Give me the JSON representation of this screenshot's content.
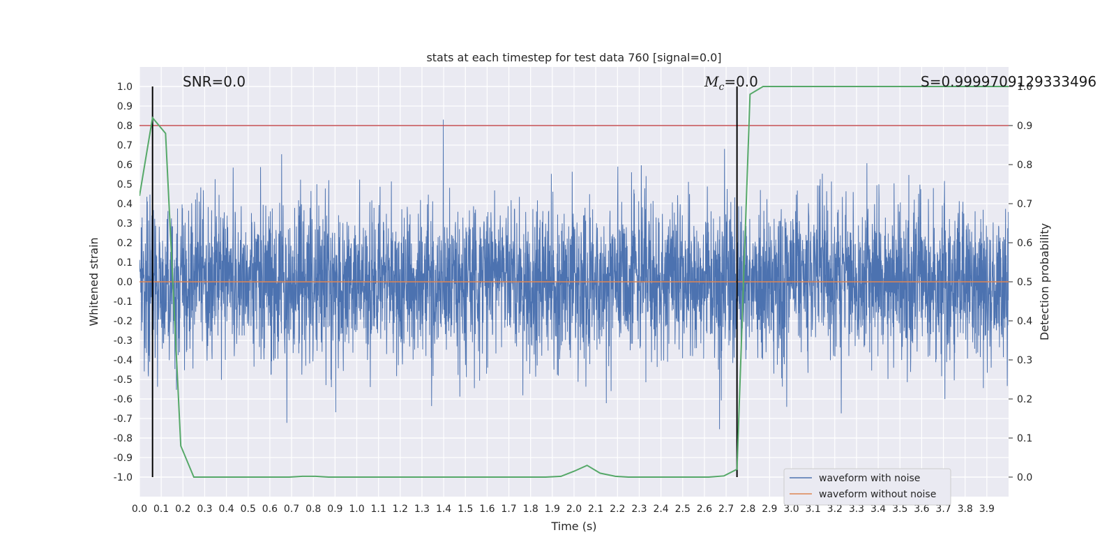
{
  "chart_data": {
    "type": "line",
    "title": "stats at each timestep for test data 760 [signal=0.0]",
    "xlabel": "Time (s)",
    "ylabel": "Whitened strain",
    "y2label": "Detection probability",
    "xlim": [
      0.0,
      4.0
    ],
    "ylim": [
      -1.1,
      1.1
    ],
    "y2lim": [
      -0.05,
      1.05
    ],
    "grid": true,
    "xticks": [
      0.0,
      0.1,
      0.2,
      0.3,
      0.4,
      0.5,
      0.6,
      0.7,
      0.8,
      0.9,
      1.0,
      1.1,
      1.2,
      1.3,
      1.4,
      1.5,
      1.6,
      1.7,
      1.8,
      1.9,
      2.0,
      2.1,
      2.2,
      2.3,
      2.4,
      2.5,
      2.6,
      2.7,
      2.8,
      2.9,
      3.0,
      3.1,
      3.2,
      3.3,
      3.4,
      3.5,
      3.6,
      3.7,
      3.8,
      3.9
    ],
    "yticks": [
      1.0,
      0.9,
      0.8,
      0.7,
      0.6,
      0.5,
      0.4,
      0.3,
      0.2,
      0.1,
      0.0,
      -0.1,
      -0.2,
      -0.3,
      -0.4,
      -0.5,
      -0.6,
      -0.7,
      -0.8,
      -0.9,
      -1.0
    ],
    "y2ticks": [
      1.0,
      0.9,
      0.8,
      0.7,
      0.6,
      0.5,
      0.4,
      0.3,
      0.2,
      0.1,
      0.0
    ],
    "threshold_line": {
      "y2": 0.9,
      "color": "#c44e52"
    },
    "vertical_markers": [
      0.06,
      2.75
    ],
    "annotations": {
      "snr": "SNR=0.0",
      "mc_symbol": "M",
      "mc_sub": "c",
      "mc_value": "=0.0",
      "s": "S=0.9999709129333496"
    },
    "noise_seed": 760,
    "noise_std": 0.2,
    "noise_samples": 4000,
    "series": [
      {
        "name": "waveform with noise",
        "color": "#4c72b0",
        "axis": "left",
        "note": "random noise, std ~0.2, range ~[-1,1]"
      },
      {
        "name": "waveform without noise",
        "color": "#dd8452",
        "axis": "left",
        "constant": 0.0
      },
      {
        "name": "detection probability",
        "color": "#55a868",
        "axis": "right",
        "x": [
          0.0,
          0.06,
          0.12,
          0.19,
          0.25,
          0.31,
          0.37,
          0.44,
          0.5,
          0.56,
          0.62,
          0.69,
          0.75,
          0.81,
          0.87,
          0.94,
          1.0,
          1.06,
          1.12,
          1.19,
          1.25,
          1.31,
          1.37,
          1.44,
          1.5,
          1.56,
          1.62,
          1.69,
          1.75,
          1.81,
          1.87,
          1.94,
          2.0,
          2.06,
          2.12,
          2.19,
          2.25,
          2.31,
          2.37,
          2.44,
          2.5,
          2.56,
          2.62,
          2.69,
          2.75,
          2.81,
          2.87,
          2.94,
          3.0,
          3.06,
          3.12,
          3.19,
          3.25,
          3.31,
          3.37,
          3.44,
          3.5,
          3.56,
          3.62,
          3.69,
          3.75,
          3.81,
          3.87,
          3.94,
          4.0
        ],
        "y": [
          0.72,
          0.92,
          0.88,
          0.08,
          0.0,
          0.0,
          0.0,
          0.0,
          0.0,
          0.0,
          0.0,
          0.0,
          0.002,
          0.002,
          0.0,
          0.0,
          0.0,
          0.0,
          0.0,
          0.0,
          0.0,
          0.0,
          0.0,
          0.0,
          0.0,
          0.0,
          0.0,
          0.0,
          0.0,
          0.0,
          0.0,
          0.002,
          0.015,
          0.03,
          0.01,
          0.002,
          0.0,
          0.0,
          0.0,
          0.0,
          0.0,
          0.0,
          0.0,
          0.003,
          0.02,
          0.98,
          1.0,
          1.0,
          1.0,
          1.0,
          1.0,
          1.0,
          1.0,
          1.0,
          1.0,
          1.0,
          1.0,
          1.0,
          1.0,
          1.0,
          1.0,
          1.0,
          1.0,
          1.0,
          1.0
        ]
      }
    ],
    "legend": {
      "location": "lower right",
      "entries": [
        "waveform with noise",
        "waveform without noise"
      ]
    }
  },
  "colors": {
    "plot_bg": "#eaeaf2",
    "grid": "#ffffff",
    "marker": "#000000"
  }
}
